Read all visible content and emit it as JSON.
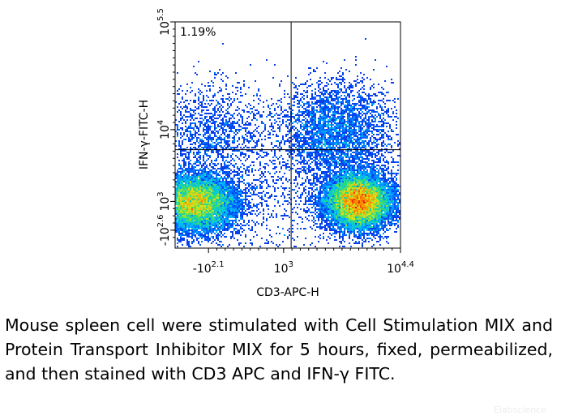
{
  "chart_data": {
    "type": "scatter",
    "subtype": "flow-cytometry-density",
    "xlabel": "CD3-APC-H",
    "ylabel": "IFN-γ-FITC-H",
    "x_scale": "log",
    "y_scale": "log",
    "xlim": [
      1.7,
      4.4
    ],
    "ylim": [
      2.35,
      5.5
    ],
    "x_ticks": [
      {
        "value": 2.1,
        "base": "-10",
        "exp": "2.1"
      },
      {
        "value": 3,
        "base": "10",
        "exp": "3"
      },
      {
        "value": 4.4,
        "base": "10",
        "exp": "4.4"
      }
    ],
    "y_ticks": [
      {
        "value": 2.6,
        "base": "-10",
        "exp": "2.6"
      },
      {
        "value": 3,
        "base": "10",
        "exp": "3"
      },
      {
        "value": 4,
        "base": "10",
        "exp": "4"
      },
      {
        "value": 5.5,
        "base": "10",
        "exp": "5.5"
      }
    ],
    "quadrant_gate": {
      "x": 3.09,
      "y": 3.72
    },
    "annotations": [
      {
        "text": "1.19%",
        "quadrant": "upper-left"
      }
    ],
    "populations": [
      {
        "center": [
          1.93,
          2.98
        ],
        "spread": [
          0.25,
          0.2
        ],
        "weight": 0.37
      },
      {
        "center": [
          3.9,
          3.0
        ],
        "spread": [
          0.2,
          0.19
        ],
        "weight": 0.41
      },
      {
        "center": [
          3.62,
          3.95
        ],
        "spread": [
          0.35,
          0.35
        ],
        "weight": 0.13
      },
      {
        "center": [
          2.12,
          3.95
        ],
        "spread": [
          0.35,
          0.35
        ],
        "weight": 0.05
      },
      {
        "center": [
          2.9,
          3.0
        ],
        "spread": [
          0.85,
          0.45
        ],
        "weight": 0.04
      }
    ],
    "grid": false,
    "legend": "none"
  },
  "caption": "Mouse spleen cell were stimulated with Cell Stimulation MIX and Protein Transport Inhibitor MIX for 5 hours, fixed, permeabilized, and then stained with CD3 APC and IFN-γ FITC.",
  "watermark": "Elabscience"
}
